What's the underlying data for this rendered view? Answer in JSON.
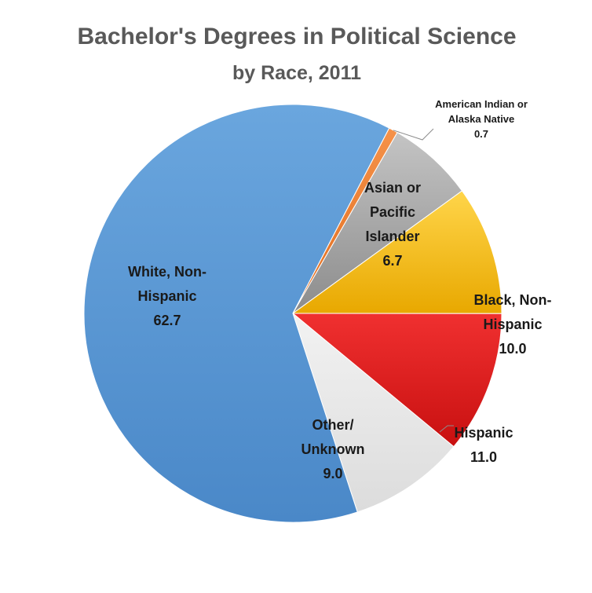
{
  "chart_data": {
    "type": "pie",
    "title": [
      "Bachelor's Degrees in Political Science",
      "by Race, 2011"
    ],
    "slices": [
      {
        "label": [
          "Asian or",
          "Pacific",
          "Islander"
        ],
        "value": 6.7,
        "display": "6.7",
        "color": "#a6a6a6"
      },
      {
        "label": [
          "Black, Non-",
          "Hispanic"
        ],
        "value": 10.0,
        "display": "10.0",
        "color": "#ffc000"
      },
      {
        "label": [
          "Hispanic"
        ],
        "value": 11.0,
        "display": "11.0",
        "color": "#e31a1c"
      },
      {
        "label": [
          "Other/",
          "Unknown"
        ],
        "value": 9.0,
        "display": "9.0",
        "color": "#e8e8e8"
      },
      {
        "label": [
          "White, Non-",
          "Hispanic"
        ],
        "value": 62.7,
        "display": "62.7",
        "color": "#5b9bd5"
      },
      {
        "label": [
          "American Indian or",
          "Alaska Native"
        ],
        "value": 0.7,
        "display": "0.7",
        "color": "#ed7d31"
      }
    ],
    "start_angle_deg": 30,
    "direction": "clockwise"
  }
}
